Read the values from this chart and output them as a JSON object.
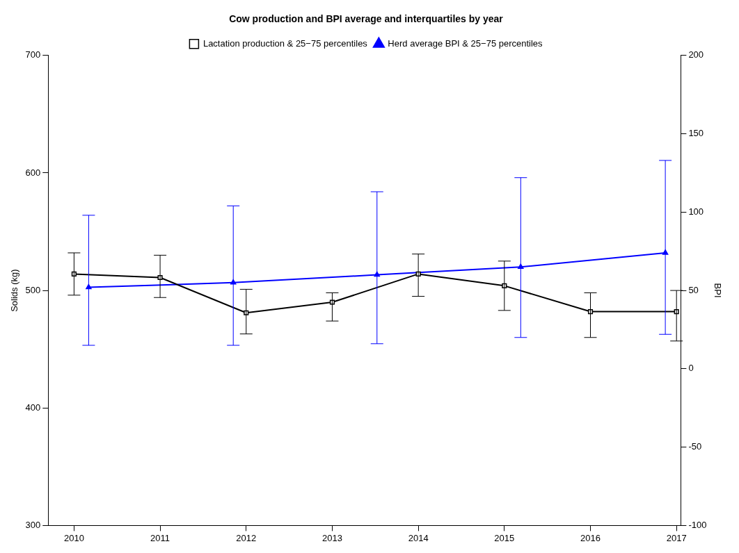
{
  "chart_data": {
    "type": "line",
    "title": "Cow production and BPI average and interquartiles by year",
    "ylabel": "Solids (kg)",
    "y2label": "BPI",
    "xlim": [
      2009.7,
      2017.05
    ],
    "xticks": [
      2010,
      2011,
      2012,
      2013,
      2014,
      2015,
      2016,
      2017
    ],
    "ylim": [
      300,
      700
    ],
    "yticks": [
      300,
      400,
      500,
      600,
      700
    ],
    "y2lim": [
      -100,
      200
    ],
    "y2ticks": [
      -100,
      -50,
      0,
      50,
      100,
      150,
      200
    ],
    "grid": false,
    "legend": "top",
    "series": [
      {
        "name": "Lactation production & 25−75 percentiles",
        "color": "#000000",
        "marker": "square",
        "x": [
          2010,
          2011,
          2012,
          2013,
          2014,
          2015,
          2016,
          2017
        ],
        "values": [
          514,
          511,
          481,
          490,
          514,
          504,
          482,
          482
        ],
        "errors": [
          [
            496,
            532
          ],
          [
            494,
            530
          ],
          [
            463,
            501
          ],
          [
            474,
            498
          ],
          [
            495,
            531
          ],
          [
            483,
            525
          ],
          [
            460,
            498
          ],
          [
            457,
            500
          ]
        ]
      },
      {
        "name": "Herd average BPI & 25−75 percentiles",
        "color": "#0000ff",
        "marker": "triangle",
        "axis": "y2",
        "x": [
          2010.17,
          2011.85,
          2013.52,
          2015.19,
          2016.87
        ],
        "values": [
          52,
          55,
          60,
          65,
          74
        ],
        "errors": [
          [
            15,
            98
          ],
          [
            15,
            104
          ],
          [
            16,
            113
          ],
          [
            20,
            122
          ],
          [
            22,
            133
          ]
        ]
      }
    ]
  }
}
